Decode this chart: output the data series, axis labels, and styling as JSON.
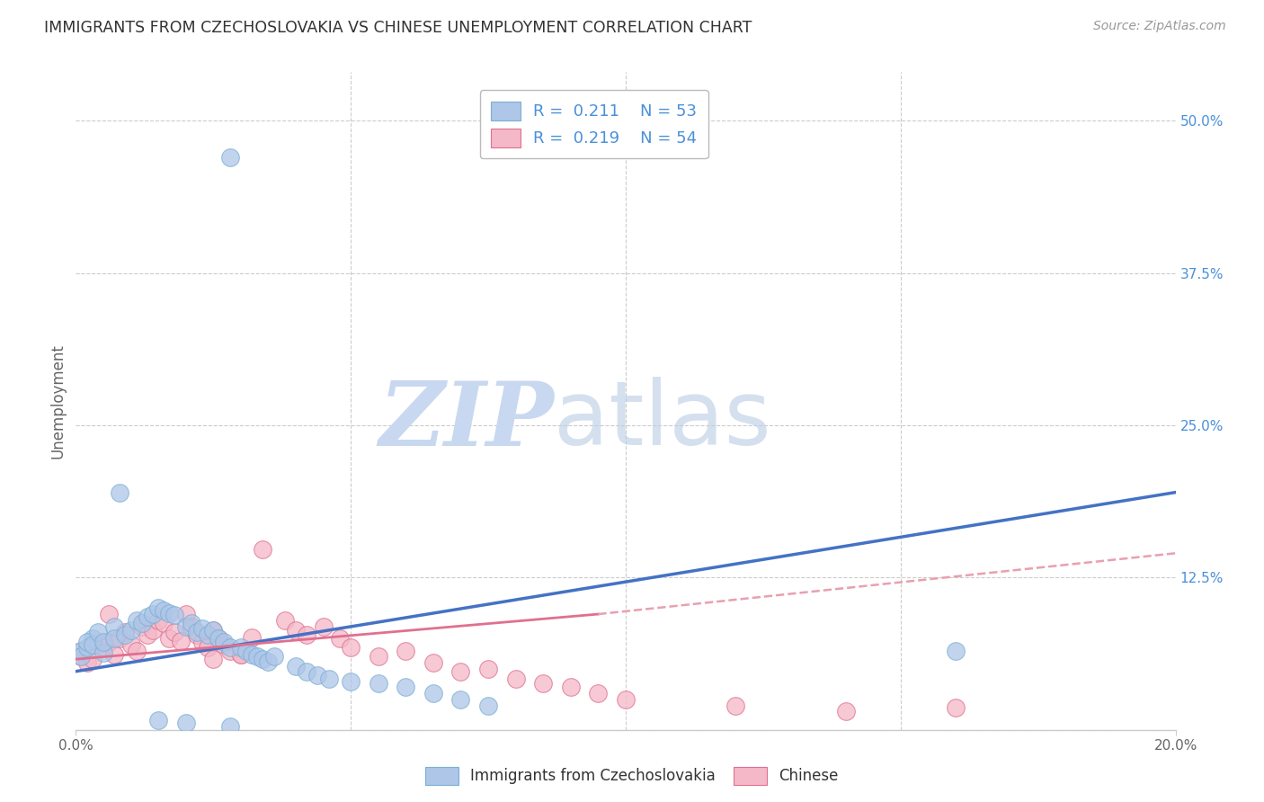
{
  "title": "IMMIGRANTS FROM CZECHOSLOVAKIA VS CHINESE UNEMPLOYMENT CORRELATION CHART",
  "source": "Source: ZipAtlas.com",
  "ylabel": "Unemployment",
  "legend_entries": [
    {
      "label": "Immigrants from Czechoslovakia",
      "color": "#aec6e8",
      "border": "#7bafd4",
      "R": "0.211",
      "N": "53"
    },
    {
      "label": "Chinese",
      "color": "#f4b8c8",
      "border": "#e07090",
      "R": "0.219",
      "N": "54"
    }
  ],
  "blue_color": "#4a90d9",
  "scatter_blue": "#aec6e8",
  "scatter_blue_edge": "#7bafd4",
  "scatter_pink": "#f4b8c8",
  "scatter_pink_edge": "#e07090",
  "line_blue": "#4472c4",
  "line_pink_solid": "#e07090",
  "line_pink_dash": "#e8a0b0",
  "background": "#ffffff",
  "grid_color": "#cccccc",
  "title_color": "#333333",
  "axis_label_color": "#666666",
  "right_tick_color": "#4a90d9",
  "blue_scatter_x": [
    0.028,
    0.008,
    0.003,
    0.001,
    0.001,
    0.002,
    0.002,
    0.003,
    0.004,
    0.005,
    0.005,
    0.007,
    0.007,
    0.009,
    0.01,
    0.011,
    0.012,
    0.013,
    0.014,
    0.015,
    0.016,
    0.017,
    0.018,
    0.02,
    0.021,
    0.022,
    0.023,
    0.024,
    0.025,
    0.026,
    0.027,
    0.028,
    0.03,
    0.031,
    0.032,
    0.033,
    0.034,
    0.035,
    0.036,
    0.04,
    0.042,
    0.044,
    0.046,
    0.05,
    0.055,
    0.06,
    0.065,
    0.07,
    0.075,
    0.16,
    0.028,
    0.02,
    0.015
  ],
  "blue_scatter_y": [
    0.47,
    0.195,
    0.075,
    0.065,
    0.06,
    0.068,
    0.072,
    0.07,
    0.08,
    0.063,
    0.072,
    0.085,
    0.075,
    0.078,
    0.082,
    0.09,
    0.088,
    0.093,
    0.095,
    0.1,
    0.098,
    0.096,
    0.094,
    0.085,
    0.088,
    0.08,
    0.083,
    0.078,
    0.082,
    0.075,
    0.072,
    0.068,
    0.068,
    0.065,
    0.062,
    0.06,
    0.058,
    0.056,
    0.06,
    0.052,
    0.048,
    0.045,
    0.042,
    0.04,
    0.038,
    0.035,
    0.03,
    0.025,
    0.02,
    0.065,
    0.003,
    0.006,
    0.008
  ],
  "pink_scatter_x": [
    0.001,
    0.001,
    0.002,
    0.003,
    0.004,
    0.005,
    0.006,
    0.007,
    0.008,
    0.009,
    0.01,
    0.011,
    0.012,
    0.013,
    0.014,
    0.015,
    0.016,
    0.017,
    0.018,
    0.019,
    0.02,
    0.021,
    0.022,
    0.023,
    0.024,
    0.025,
    0.026,
    0.027,
    0.028,
    0.03,
    0.032,
    0.034,
    0.038,
    0.04,
    0.042,
    0.045,
    0.048,
    0.05,
    0.055,
    0.06,
    0.065,
    0.07,
    0.075,
    0.08,
    0.085,
    0.09,
    0.095,
    0.1,
    0.12,
    0.14,
    0.16,
    0.006,
    0.03,
    0.025
  ],
  "pink_scatter_y": [
    0.06,
    0.065,
    0.055,
    0.058,
    0.07,
    0.068,
    0.072,
    0.062,
    0.075,
    0.08,
    0.07,
    0.065,
    0.085,
    0.078,
    0.082,
    0.09,
    0.088,
    0.075,
    0.08,
    0.073,
    0.095,
    0.085,
    0.078,
    0.072,
    0.068,
    0.082,
    0.075,
    0.07,
    0.065,
    0.062,
    0.076,
    0.148,
    0.09,
    0.082,
    0.078,
    0.085,
    0.075,
    0.068,
    0.06,
    0.065,
    0.055,
    0.048,
    0.05,
    0.042,
    0.038,
    0.035,
    0.03,
    0.025,
    0.02,
    0.015,
    0.018,
    0.095,
    0.062,
    0.058
  ],
  "xlim": [
    0.0,
    0.2
  ],
  "ylim": [
    0.0,
    0.54
  ],
  "blue_line_x": [
    0.0,
    0.2
  ],
  "blue_line_y": [
    0.048,
    0.195
  ],
  "pink_solid_line_x": [
    0.0,
    0.095
  ],
  "pink_solid_line_y": [
    0.058,
    0.095
  ],
  "pink_dash_line_x": [
    0.095,
    0.2
  ],
  "pink_dash_line_y": [
    0.095,
    0.145
  ]
}
